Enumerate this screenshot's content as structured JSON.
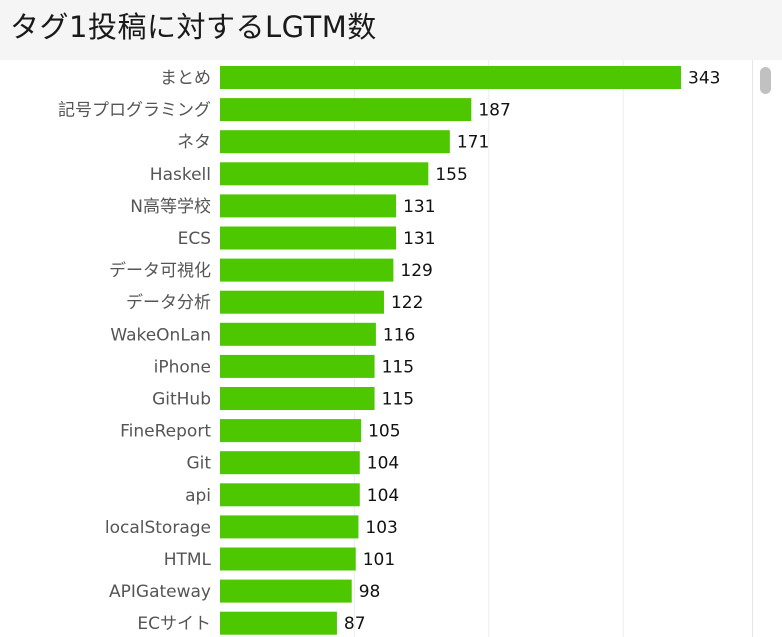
{
  "page": {
    "title": "タグ1投稿に対するLGTM数"
  },
  "colors": {
    "bar": "#4cc700",
    "grid": "#ececec"
  },
  "chart_data": {
    "type": "bar",
    "orientation": "horizontal",
    "title": "タグ1投稿に対するLGTM数",
    "categories": [
      "まとめ",
      "記号プログラミング",
      "ネタ",
      "Haskell",
      "N高等学校",
      "ECS",
      "データ可視化",
      "データ分析",
      "WakeOnLan",
      "iPhone",
      "GitHub",
      "FineReport",
      "Git",
      "api",
      "localStorage",
      "HTML",
      "APIGateway",
      "ECサイト"
    ],
    "values": [
      343,
      187,
      171,
      155,
      131,
      131,
      129,
      122,
      116,
      115,
      115,
      105,
      104,
      104,
      103,
      101,
      98,
      87
    ],
    "xlim": [
      0,
      400
    ],
    "grid": true,
    "data_labels": true,
    "legend": "none"
  }
}
